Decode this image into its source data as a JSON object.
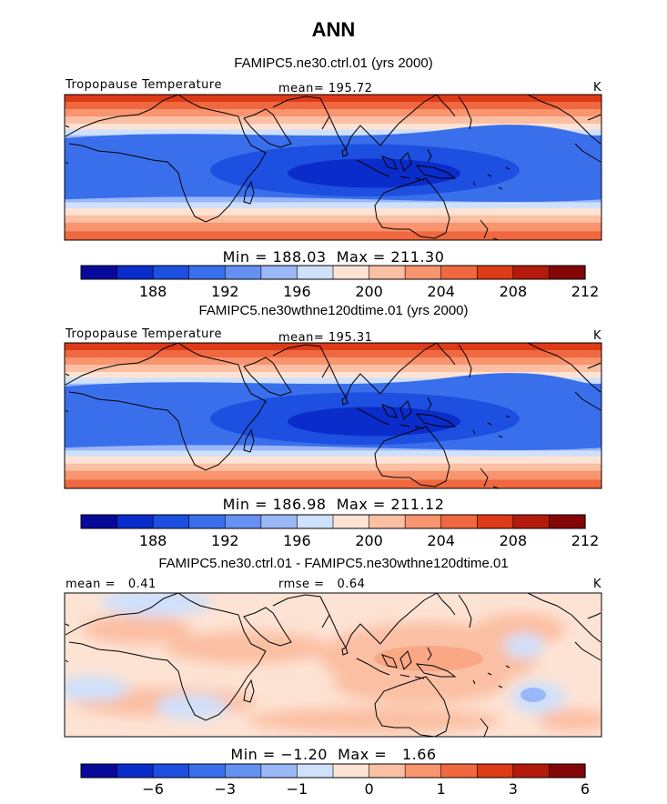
{
  "chart_data": [
    {
      "type": "heatmap",
      "title": "FAMIPC5.ne30.ctrl.01 (yrs 2000)",
      "variable": "Tropopause Temperature",
      "units": "K",
      "mean_label": "mean=",
      "mean_value": "195.72",
      "min_label": "Min =",
      "min_value": "188.03",
      "max_label": "Max =",
      "max_value": "211.30",
      "colorbar_ticks": [
        "188",
        "192",
        "196",
        "200",
        "204",
        "208",
        "212"
      ],
      "colorbar_colors": [
        "#08099b",
        "#0a2ccb",
        "#1d4fe0",
        "#3a6fec",
        "#6591f3",
        "#9ab8f8",
        "#cfe0fb",
        "#fde3d4",
        "#fbbfa3",
        "#f8946e",
        "#f06840",
        "#dd3a17",
        "#b41a0c",
        "#840707"
      ]
    },
    {
      "type": "heatmap",
      "title": "FAMIPC5.ne30wthne120dtime.01 (yrs 2000)",
      "variable": "Tropopause Temperature",
      "units": "K",
      "mean_label": "mean=",
      "mean_value": "195.31",
      "min_label": "Min =",
      "min_value": "186.98",
      "max_label": "Max =",
      "max_value": "211.12",
      "colorbar_ticks": [
        "188",
        "192",
        "196",
        "200",
        "204",
        "208",
        "212"
      ],
      "colorbar_colors": [
        "#08099b",
        "#0a2ccb",
        "#1d4fe0",
        "#3a6fec",
        "#6591f3",
        "#9ab8f8",
        "#cfe0fb",
        "#fde3d4",
        "#fbbfa3",
        "#f8946e",
        "#f06840",
        "#dd3a17",
        "#b41a0c",
        "#840707"
      ]
    },
    {
      "type": "heatmap",
      "title": "FAMIPC5.ne30.ctrl.01 - FAMIPC5.ne30wthne120dtime.01",
      "units": "K",
      "mean_label": "mean =",
      "mean_value": "0.41",
      "rmse_label": "rmse =",
      "rmse_value": "0.64",
      "min_label": "Min =",
      "min_value": "−1.20",
      "max_label": "Max =",
      "max_value": "1.66",
      "colorbar_ticks": [
        "−6",
        "−3",
        "−1",
        "0",
        "1",
        "3",
        "6"
      ],
      "colorbar_colors": [
        "#08099b",
        "#0a2ccb",
        "#1d4fe0",
        "#3a6fec",
        "#6591f3",
        "#9ab8f8",
        "#cfe0fb",
        "#fde3d4",
        "#fbbfa3",
        "#f8946e",
        "#f06840",
        "#dd3a17",
        "#b41a0c",
        "#840707"
      ]
    }
  ],
  "page": {
    "title": "ANN"
  }
}
